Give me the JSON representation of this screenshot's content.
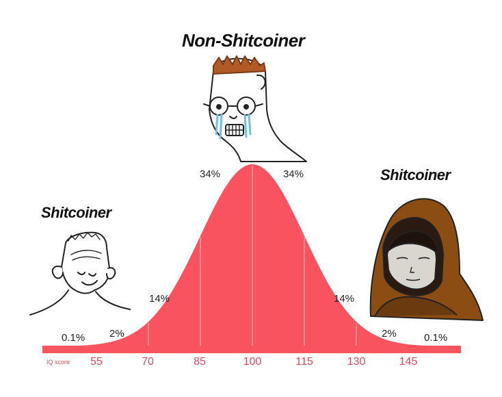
{
  "labels": {
    "left": "Shitcoiner",
    "center": "Non-Shitcoiner",
    "right": "Shitcoiner"
  },
  "distribution": {
    "percentages": [
      "0.1%",
      "2%",
      "14%",
      "34%",
      "34%",
      "14%",
      "2%",
      "0.1%"
    ],
    "axis_label": "IQ score",
    "ticks": [
      "55",
      "70",
      "85",
      "100",
      "115",
      "130",
      "145"
    ],
    "mean": 100,
    "sd": 15
  },
  "characters": {
    "left": "smiling-wojak",
    "center": "crying-wojak-with-glasses",
    "right": "hooded-character"
  },
  "colors": {
    "curve_fill": "#f9535f",
    "tick_text": "#e2485a",
    "hood": "#8b4d12"
  }
}
